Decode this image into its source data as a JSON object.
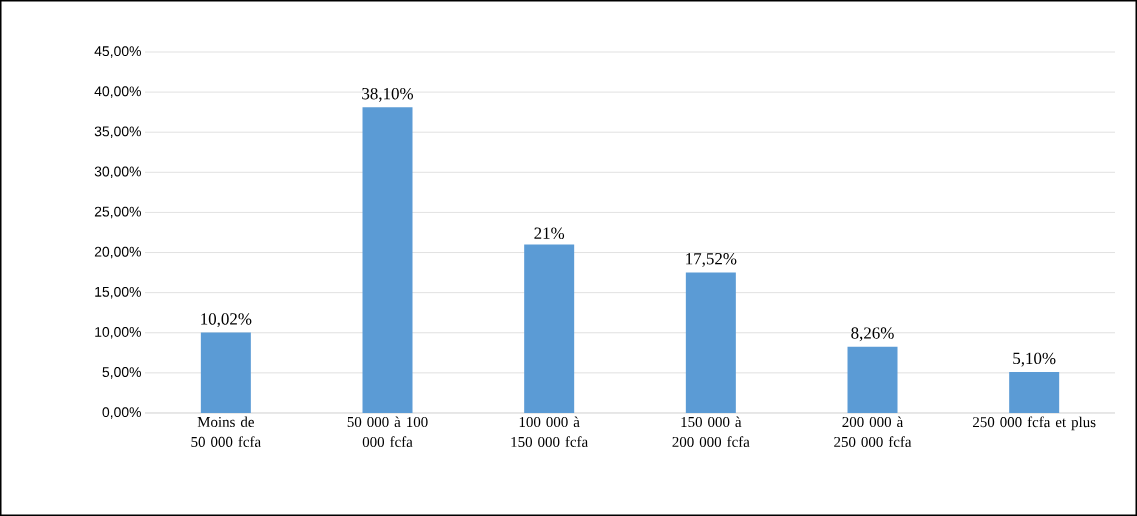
{
  "chart_data": {
    "type": "bar",
    "categories": [
      "Moins de 50 000 fcfa",
      "50 000 à 100 000 fcfa",
      "100 000 à 150 000 fcfa",
      "150 000 à 200 000 fcfa",
      "200 000 à 250 000 fcfa",
      "250 000 fcfa et plus"
    ],
    "values": [
      10.02,
      38.1,
      21,
      17.52,
      8.26,
      5.1
    ],
    "value_labels": [
      "10,02%",
      "38,10%",
      "21%",
      "17,52%",
      "8,26%",
      "5,10%"
    ],
    "color": "#5b9bd5",
    "ylim": [
      0,
      45
    ],
    "yticks": [
      {
        "value": 0,
        "label": "0,00%"
      },
      {
        "value": 5,
        "label": "5,00%"
      },
      {
        "value": 10,
        "label": "10,00%"
      },
      {
        "value": 15,
        "label": "15,00%"
      },
      {
        "value": 20,
        "label": "20,00%"
      },
      {
        "value": 25,
        "label": "25,00%"
      },
      {
        "value": 30,
        "label": "30,00%"
      },
      {
        "value": 35,
        "label": "35,00%"
      },
      {
        "value": 40,
        "label": "40,00%"
      },
      {
        "value": 45,
        "label": "45,00%"
      }
    ],
    "grid": "y"
  }
}
